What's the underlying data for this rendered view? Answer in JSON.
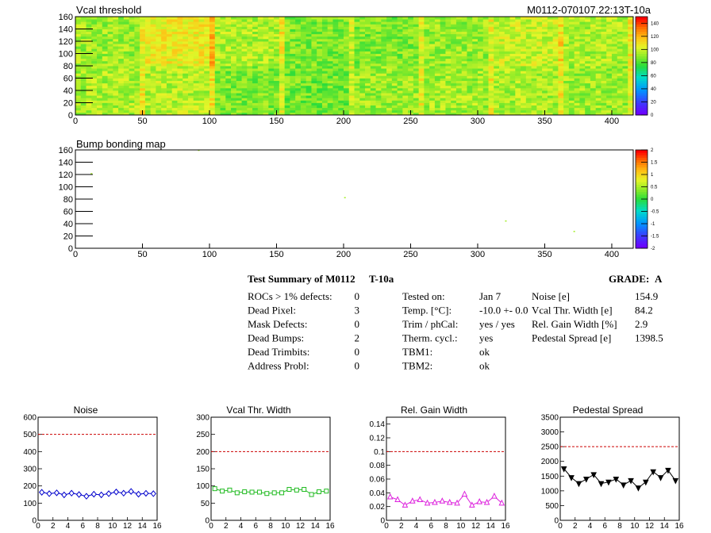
{
  "chart_data": [
    {
      "type": "heatmap",
      "title": "Vcal threshold",
      "xlim": [
        0,
        416
      ],
      "ylim": [
        0,
        160
      ],
      "x_ticks": [
        0,
        50,
        100,
        150,
        200,
        250,
        300,
        350,
        400
      ],
      "y_ticks": [
        0,
        20,
        40,
        60,
        80,
        100,
        120,
        140,
        160
      ],
      "colorbar_ticks": [
        0,
        20,
        40,
        60,
        80,
        100,
        120,
        140
      ],
      "colorbar_range": [
        0,
        150
      ],
      "roc_grid": {
        "cols": 8,
        "rows": 2,
        "col_width": 52,
        "row_height": 80
      },
      "roc_mean_values": [
        [
          95,
          97,
          88,
          86,
          92,
          94,
          95,
          93
        ],
        [
          93,
          108,
          96,
          88,
          88,
          92,
          100,
          96
        ]
      ],
      "colors": {
        "background": "#ffffff",
        "axis": "#000000"
      }
    },
    {
      "type": "heatmap",
      "title": "Bump bonding map",
      "xlim": [
        0,
        416
      ],
      "ylim": [
        0,
        160
      ],
      "x_ticks": [
        0,
        50,
        100,
        150,
        200,
        250,
        300,
        350,
        400
      ],
      "y_ticks": [
        0,
        20,
        40,
        60,
        80,
        100,
        120,
        140,
        160
      ],
      "colorbar_ticks": [
        2,
        1.5,
        1,
        0.5,
        0,
        -0.5,
        -1,
        -1.5,
        -2
      ],
      "colorbar_range": [
        -2,
        2
      ],
      "points": [
        {
          "x": 12,
          "y": 121,
          "value": 0.5
        },
        {
          "x": 92,
          "y": 159,
          "value": 0.5
        },
        {
          "x": 201,
          "y": 82,
          "value": 0.5
        },
        {
          "x": 321,
          "y": 44,
          "value": 0.5
        },
        {
          "x": 372,
          "y": 27,
          "value": 0.5
        }
      ]
    },
    {
      "type": "line",
      "title": "Noise",
      "xlim": [
        0,
        16
      ],
      "ylim": [
        0,
        600
      ],
      "x_ticks": [
        0,
        2,
        4,
        6,
        8,
        10,
        12,
        14,
        16
      ],
      "y_ticks": [
        0,
        100,
        200,
        300,
        400,
        500,
        600
      ],
      "y_tick_labels": [
        "0",
        "100",
        "200",
        "300",
        "400",
        "500",
        "600"
      ],
      "threshold": 500,
      "marker": "diamond-open",
      "color": "#0000cc",
      "x": [
        0.5,
        1.5,
        2.5,
        3.5,
        4.5,
        5.5,
        6.5,
        7.5,
        8.5,
        9.5,
        10.5,
        11.5,
        12.5,
        13.5,
        14.5,
        15.5
      ],
      "values": [
        163,
        155,
        160,
        148,
        158,
        150,
        140,
        152,
        148,
        155,
        165,
        158,
        168,
        152,
        157,
        155
      ]
    },
    {
      "type": "line",
      "title": "Vcal Thr. Width",
      "xlim": [
        0,
        16
      ],
      "ylim": [
        0,
        300
      ],
      "x_ticks": [
        0,
        2,
        4,
        6,
        8,
        10,
        12,
        14,
        16
      ],
      "y_ticks": [
        0,
        50,
        100,
        150,
        200,
        250,
        300
      ],
      "y_tick_labels": [
        "0",
        "50",
        "100",
        "150",
        "200",
        "250",
        "300"
      ],
      "threshold": 200,
      "marker": "square-open",
      "color": "#22bb22",
      "x": [
        0.5,
        1.5,
        2.5,
        3.5,
        4.5,
        5.5,
        6.5,
        7.5,
        8.5,
        9.5,
        10.5,
        11.5,
        12.5,
        13.5,
        14.5,
        15.5
      ],
      "values": [
        92,
        85,
        88,
        80,
        83,
        82,
        82,
        78,
        80,
        80,
        90,
        88,
        90,
        75,
        83,
        85
      ]
    },
    {
      "type": "line",
      "title": "Rel. Gain Width",
      "xlim": [
        0,
        16
      ],
      "ylim": [
        0,
        0.15
      ],
      "x_ticks": [
        0,
        2,
        4,
        6,
        8,
        10,
        12,
        14,
        16
      ],
      "y_ticks": [
        0,
        0.02,
        0.04,
        0.06,
        0.08,
        0.1,
        0.12,
        0.14
      ],
      "y_tick_labels": [
        "0",
        "0.02",
        "0.04",
        "0.06",
        "0.08",
        "0.1",
        "0.12",
        "0.14"
      ],
      "threshold": 0.1,
      "marker": "triangle-open",
      "color": "#dd22dd",
      "x": [
        0.5,
        1.5,
        2.5,
        3.5,
        4.5,
        5.5,
        6.5,
        7.5,
        8.5,
        9.5,
        10.5,
        11.5,
        12.5,
        13.5,
        14.5,
        15.5
      ],
      "values": [
        0.034,
        0.03,
        0.022,
        0.028,
        0.03,
        0.025,
        0.026,
        0.028,
        0.026,
        0.025,
        0.038,
        0.022,
        0.027,
        0.026,
        0.035,
        0.025
      ]
    },
    {
      "type": "line",
      "title": "Pedestal Spread",
      "xlim": [
        0,
        16
      ],
      "ylim": [
        0,
        3500
      ],
      "x_ticks": [
        0,
        2,
        4,
        6,
        8,
        10,
        12,
        14,
        16
      ],
      "y_ticks": [
        0,
        500,
        1000,
        1500,
        2000,
        2500,
        3000,
        3500
      ],
      "y_tick_labels": [
        "0",
        "500",
        "1000",
        "1500",
        "2000",
        "2500",
        "3000",
        "3500"
      ],
      "threshold": 2500,
      "marker": "triangle-down-filled",
      "color": "#000000",
      "x": [
        0.5,
        1.5,
        2.5,
        3.5,
        4.5,
        5.5,
        6.5,
        7.5,
        8.5,
        9.5,
        10.5,
        11.5,
        12.5,
        13.5,
        14.5,
        15.5
      ],
      "values": [
        1750,
        1450,
        1250,
        1400,
        1550,
        1250,
        1300,
        1400,
        1200,
        1350,
        1100,
        1300,
        1650,
        1450,
        1700,
        1350
      ]
    }
  ],
  "header": {
    "module_id": "M0112-070107.22:13T-10a"
  },
  "summary": {
    "title": "Test Summary of M0112",
    "test": "T-10a",
    "grade_label": "GRADE:",
    "grade": "A",
    "defects": [
      {
        "label": "ROCs > 1% defects:",
        "value": "0"
      },
      {
        "label": "Dead Pixel:",
        "value": "3"
      },
      {
        "label": "Mask Defects:",
        "value": "0"
      },
      {
        "label": "Dead Bumps:",
        "value": "2"
      },
      {
        "label": "Dead Trimbits:",
        "value": "0"
      },
      {
        "label": "Address Probl:",
        "value": "0"
      }
    ],
    "conditions": [
      {
        "label": "Tested on:",
        "value": "Jan 7"
      },
      {
        "label": "Temp. [°C]:",
        "value": "-10.0 +- 0.0"
      },
      {
        "label": "Trim / phCal:",
        "value": "yes / yes"
      },
      {
        "label": "Therm. cycl.:",
        "value": "yes"
      },
      {
        "label": "TBM1:",
        "value": "ok"
      },
      {
        "label": "TBM2:",
        "value": "ok"
      }
    ],
    "metrics": [
      {
        "label": "Noise [e]",
        "value": "154.9"
      },
      {
        "label": "Vcal Thr. Width [e]",
        "value": "84.2"
      },
      {
        "label": "Rel. Gain Width [%]",
        "value": "2.9"
      },
      {
        "label": "Pedestal Spread [e]",
        "value": "1398.5"
      }
    ]
  }
}
